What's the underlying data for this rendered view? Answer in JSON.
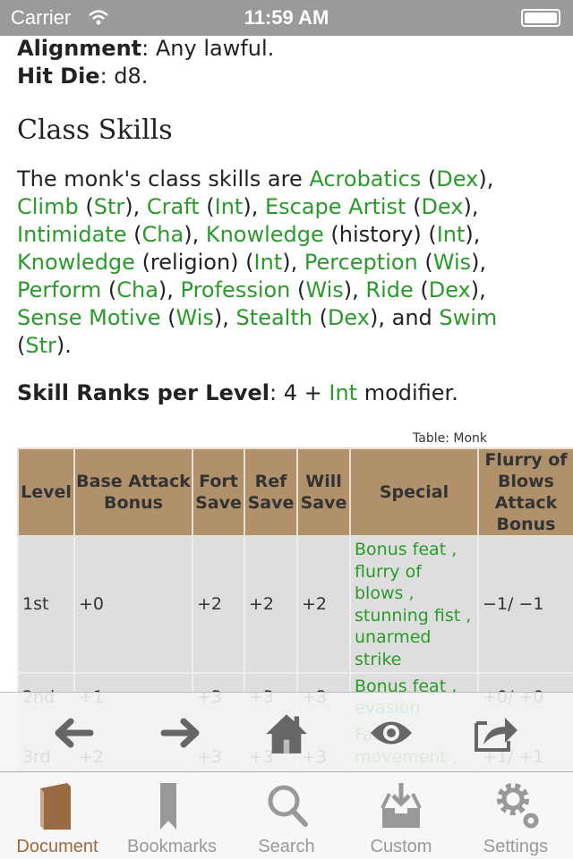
{
  "status_bar": {
    "carrier": "Carrier",
    "time": "11:59 AM"
  },
  "document": {
    "alignment_label": "Alignment",
    "alignment_value": ": Any lawful.",
    "hit_die_label": "Hit Die",
    "hit_die_value": ": d8.",
    "heading": "Class Skills",
    "skills_paragraph": [
      {
        "t": "The monk's class skills are ",
        "link": false
      },
      {
        "t": "Acrobatics",
        "link": true
      },
      {
        "t": " (",
        "link": false
      },
      {
        "t": "Dex",
        "link": true
      },
      {
        "t": "), ",
        "link": false
      },
      {
        "t": "Climb",
        "link": true
      },
      {
        "t": " (",
        "link": false
      },
      {
        "t": "Str",
        "link": true
      },
      {
        "t": "), ",
        "link": false
      },
      {
        "t": "Craft",
        "link": true
      },
      {
        "t": " (",
        "link": false
      },
      {
        "t": "Int",
        "link": true
      },
      {
        "t": "), ",
        "link": false
      },
      {
        "t": "Escape Artist",
        "link": true
      },
      {
        "t": " (",
        "link": false
      },
      {
        "t": "Dex",
        "link": true
      },
      {
        "t": "), ",
        "link": false
      },
      {
        "t": "Intimidate",
        "link": true
      },
      {
        "t": " (",
        "link": false
      },
      {
        "t": "Cha",
        "link": true
      },
      {
        "t": "), ",
        "link": false
      },
      {
        "t": "Knowledge",
        "link": true
      },
      {
        "t": " (history) (",
        "link": false
      },
      {
        "t": "Int",
        "link": true
      },
      {
        "t": "), ",
        "link": false
      },
      {
        "t": "Knowledge",
        "link": true
      },
      {
        "t": " (religion) (",
        "link": false
      },
      {
        "t": "Int",
        "link": true
      },
      {
        "t": "), ",
        "link": false
      },
      {
        "t": "Perception",
        "link": true
      },
      {
        "t": " (",
        "link": false
      },
      {
        "t": "Wis",
        "link": true
      },
      {
        "t": "), ",
        "link": false
      },
      {
        "t": "Perform",
        "link": true
      },
      {
        "t": " (",
        "link": false
      },
      {
        "t": "Cha",
        "link": true
      },
      {
        "t": "), ",
        "link": false
      },
      {
        "t": "Profession",
        "link": true
      },
      {
        "t": " (",
        "link": false
      },
      {
        "t": "Wis",
        "link": true
      },
      {
        "t": "), ",
        "link": false
      },
      {
        "t": "Ride",
        "link": true
      },
      {
        "t": " (",
        "link": false
      },
      {
        "t": "Dex",
        "link": true
      },
      {
        "t": "), ",
        "link": false
      },
      {
        "t": "Sense Motive",
        "link": true
      },
      {
        "t": " (",
        "link": false
      },
      {
        "t": "Wis",
        "link": true
      },
      {
        "t": "), ",
        "link": false
      },
      {
        "t": "Stealth",
        "link": true
      },
      {
        "t": " (",
        "link": false
      },
      {
        "t": "Dex",
        "link": true
      },
      {
        "t": "), and ",
        "link": false
      },
      {
        "t": "Swim",
        "link": true
      },
      {
        "t": " (",
        "link": false
      },
      {
        "t": "Str",
        "link": true
      },
      {
        "t": ").",
        "link": false
      }
    ],
    "skill_ranks_label": "Skill Ranks per Level",
    "skill_ranks_pre": ": 4 + ",
    "skill_ranks_link": "Int",
    "skill_ranks_post": " modifier.",
    "table": {
      "caption": "Table: Monk",
      "headers": [
        "Level",
        "Base Attack Bonus",
        "Fort Save",
        "Ref Save",
        "Will Save",
        "Special",
        "Flurry of Blows Attack Bonus"
      ],
      "rows": [
        [
          "1st",
          "+0",
          "+2",
          "+2",
          "+2",
          "Bonus feat , flurry of blows , stunning fist , unarmed strike",
          "−1/ −1"
        ],
        [
          "2nd",
          "+1",
          "+3",
          "+3",
          "+3",
          "Bonus feat , evasion",
          "+0/ +0"
        ],
        [
          "3rd",
          "+2",
          "+3",
          "+3",
          "+3",
          "Fast movement , maneuver",
          "+1/ +1"
        ]
      ]
    }
  },
  "toolbar": [
    "back",
    "forward",
    "home",
    "view",
    "share"
  ],
  "tabs": [
    {
      "label": "Document",
      "active": true
    },
    {
      "label": "Bookmarks"
    },
    {
      "label": "Search"
    },
    {
      "label": "Custom"
    },
    {
      "label": "Settings"
    }
  ],
  "colors": {
    "link": "#2a9a2a",
    "table_header": "#b0916c",
    "active_tab": "#9a6a42"
  }
}
